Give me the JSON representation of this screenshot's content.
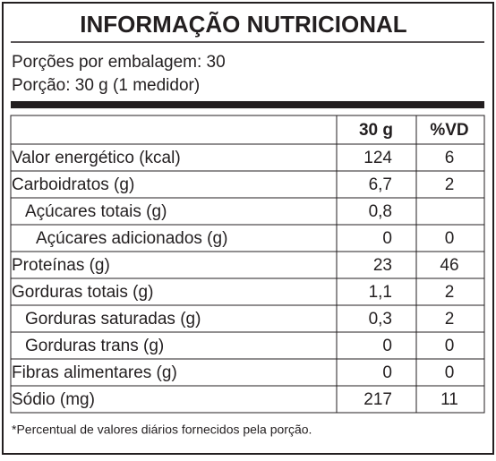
{
  "header": {
    "title": "INFORMAÇÃO NUTRICIONAL",
    "servings": "Porções por embalagem: 30",
    "portion": "Porção: 30 g (1 medidor)"
  },
  "table": {
    "columns": [
      "30 g",
      "%VD"
    ],
    "rows": [
      {
        "label": "Valor energético (kcal)",
        "amount": "124",
        "dv": "6"
      },
      {
        "label": "Carboidratos (g)",
        "amount": "6,7",
        "dv": "2"
      },
      {
        "label": "Açúcares totais (g)",
        "amount": "0,8"
      },
      {
        "label": "Açúcares adicionados (g)",
        "amount": "0",
        "dv": "0"
      },
      {
        "label": "Proteínas (g)",
        "amount": "23",
        "dv": "46"
      },
      {
        "label": "Gorduras totais (g)",
        "amount": "1,1",
        "dv": "2"
      },
      {
        "label": "Gorduras saturadas (g)",
        "amount": "0,3",
        "dv": "2"
      },
      {
        "label": "Gorduras trans (g)",
        "amount": "0",
        "dv": "0"
      },
      {
        "label": "Fibras alimentares (g)",
        "amount": "0",
        "dv": "0"
      },
      {
        "label": "Sódio (mg)",
        "amount": "217",
        "dv": "11"
      }
    ]
  },
  "footnote": "*Percentual de valores diários fornecidos pela porção."
}
